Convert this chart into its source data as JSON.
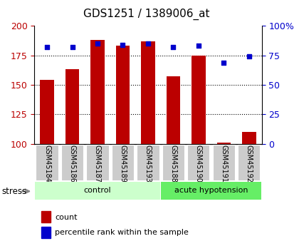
{
  "title": "GDS1251 / 1389006_at",
  "samples": [
    "GSM45184",
    "GSM45186",
    "GSM45187",
    "GSM45189",
    "GSM45193",
    "GSM45188",
    "GSM45190",
    "GSM45191",
    "GSM45192"
  ],
  "counts": [
    154,
    163,
    188,
    183,
    187,
    157,
    175,
    101,
    110
  ],
  "percentiles": [
    82,
    82,
    85,
    84,
    85,
    82,
    83,
    69,
    74
  ],
  "ylim_left": [
    100,
    200
  ],
  "ylim_right": [
    0,
    100
  ],
  "yticks_left": [
    100,
    125,
    150,
    175,
    200
  ],
  "yticks_right": [
    0,
    25,
    50,
    75,
    100
  ],
  "bar_color": "#bb0000",
  "dot_color": "#0000cc",
  "bar_width": 0.55,
  "bg_plot": "#ffffff",
  "stress_label": "stress",
  "legend_count": "count",
  "legend_pct": "percentile rank within the sample",
  "title_fontsize": 11,
  "axis_fontsize": 9,
  "tick_label_fontsize": 7,
  "group_fontsize": 8,
  "legend_fontsize": 8,
  "control_color": "#ccffcc",
  "hypotension_color": "#66ee66",
  "gray_cell": "#cccccc"
}
